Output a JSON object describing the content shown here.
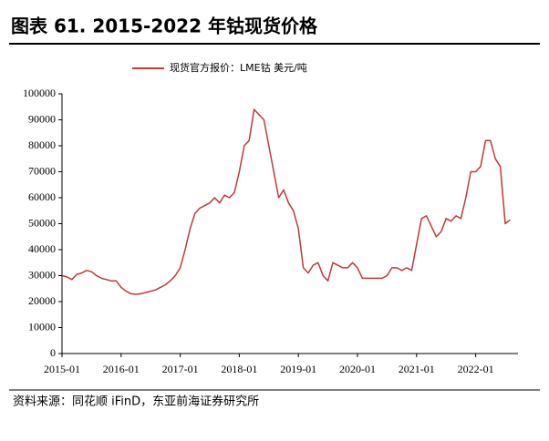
{
  "chart_data": {
    "type": "line",
    "title": "图表 61. 2015-2022 年钴现货价格",
    "source": "资料来源：同花顺 iFinD，东亚前海证券研究所",
    "x": [
      "2015-01",
      "2015-02",
      "2015-03",
      "2015-04",
      "2015-05",
      "2015-06",
      "2015-07",
      "2015-08",
      "2015-09",
      "2015-10",
      "2015-11",
      "2015-12",
      "2016-01",
      "2016-02",
      "2016-03",
      "2016-04",
      "2016-05",
      "2016-06",
      "2016-07",
      "2016-08",
      "2016-09",
      "2016-10",
      "2016-11",
      "2016-12",
      "2017-01",
      "2017-02",
      "2017-03",
      "2017-04",
      "2017-05",
      "2017-06",
      "2017-07",
      "2017-08",
      "2017-09",
      "2017-10",
      "2017-11",
      "2017-12",
      "2018-01",
      "2018-02",
      "2018-03",
      "2018-04",
      "2018-05",
      "2018-06",
      "2018-07",
      "2018-08",
      "2018-09",
      "2018-10",
      "2018-11",
      "2018-12",
      "2019-01",
      "2019-02",
      "2019-03",
      "2019-04",
      "2019-05",
      "2019-06",
      "2019-07",
      "2019-08",
      "2019-09",
      "2019-10",
      "2019-11",
      "2019-12",
      "2020-01",
      "2020-02",
      "2020-03",
      "2020-04",
      "2020-05",
      "2020-06",
      "2020-07",
      "2020-08",
      "2020-09",
      "2020-10",
      "2020-11",
      "2020-12",
      "2021-01",
      "2021-02",
      "2021-03",
      "2021-04",
      "2021-05",
      "2021-06",
      "2021-07",
      "2021-08",
      "2021-09",
      "2021-10",
      "2021-11",
      "2021-12",
      "2022-01",
      "2022-02",
      "2022-03",
      "2022-04",
      "2022-05",
      "2022-06",
      "2022-07",
      "2022-08"
    ],
    "series": [
      {
        "name": "现货官方报价：LME钴 美元/吨",
        "color": "#c0393b",
        "values": [
          30000,
          29500,
          28500,
          30500,
          31000,
          32000,
          31500,
          30000,
          29000,
          28500,
          28000,
          28000,
          25500,
          24000,
          23000,
          22800,
          23000,
          23500,
          24000,
          24500,
          25500,
          26500,
          28000,
          30000,
          33000,
          40000,
          48000,
          54000,
          56000,
          57000,
          58000,
          60000,
          58000,
          61000,
          60000,
          62000,
          70000,
          80000,
          82000,
          94000,
          92000,
          90000,
          80000,
          70000,
          60000,
          63000,
          58000,
          55000,
          48000,
          33000,
          31000,
          34000,
          35000,
          30000,
          28000,
          35000,
          34000,
          33000,
          33000,
          35000,
          33000,
          29000,
          29000,
          29000,
          29000,
          29000,
          30000,
          33000,
          33000,
          32000,
          33000,
          32000,
          42000,
          52000,
          53000,
          49000,
          45000,
          47000,
          52000,
          51000,
          53000,
          52000,
          60000,
          70000,
          70000,
          72000,
          82000,
          82000,
          75000,
          72000,
          50000,
          51500
        ]
      }
    ],
    "xticks": [
      "2015-01",
      "2016-01",
      "2017-01",
      "2018-01",
      "2019-01",
      "2020-01",
      "2021-01",
      "2022-01"
    ],
    "ylim": [
      0,
      100000
    ],
    "yticks": [
      0,
      10000,
      20000,
      30000,
      40000,
      50000,
      60000,
      70000,
      80000,
      90000,
      100000
    ],
    "grid": false
  }
}
